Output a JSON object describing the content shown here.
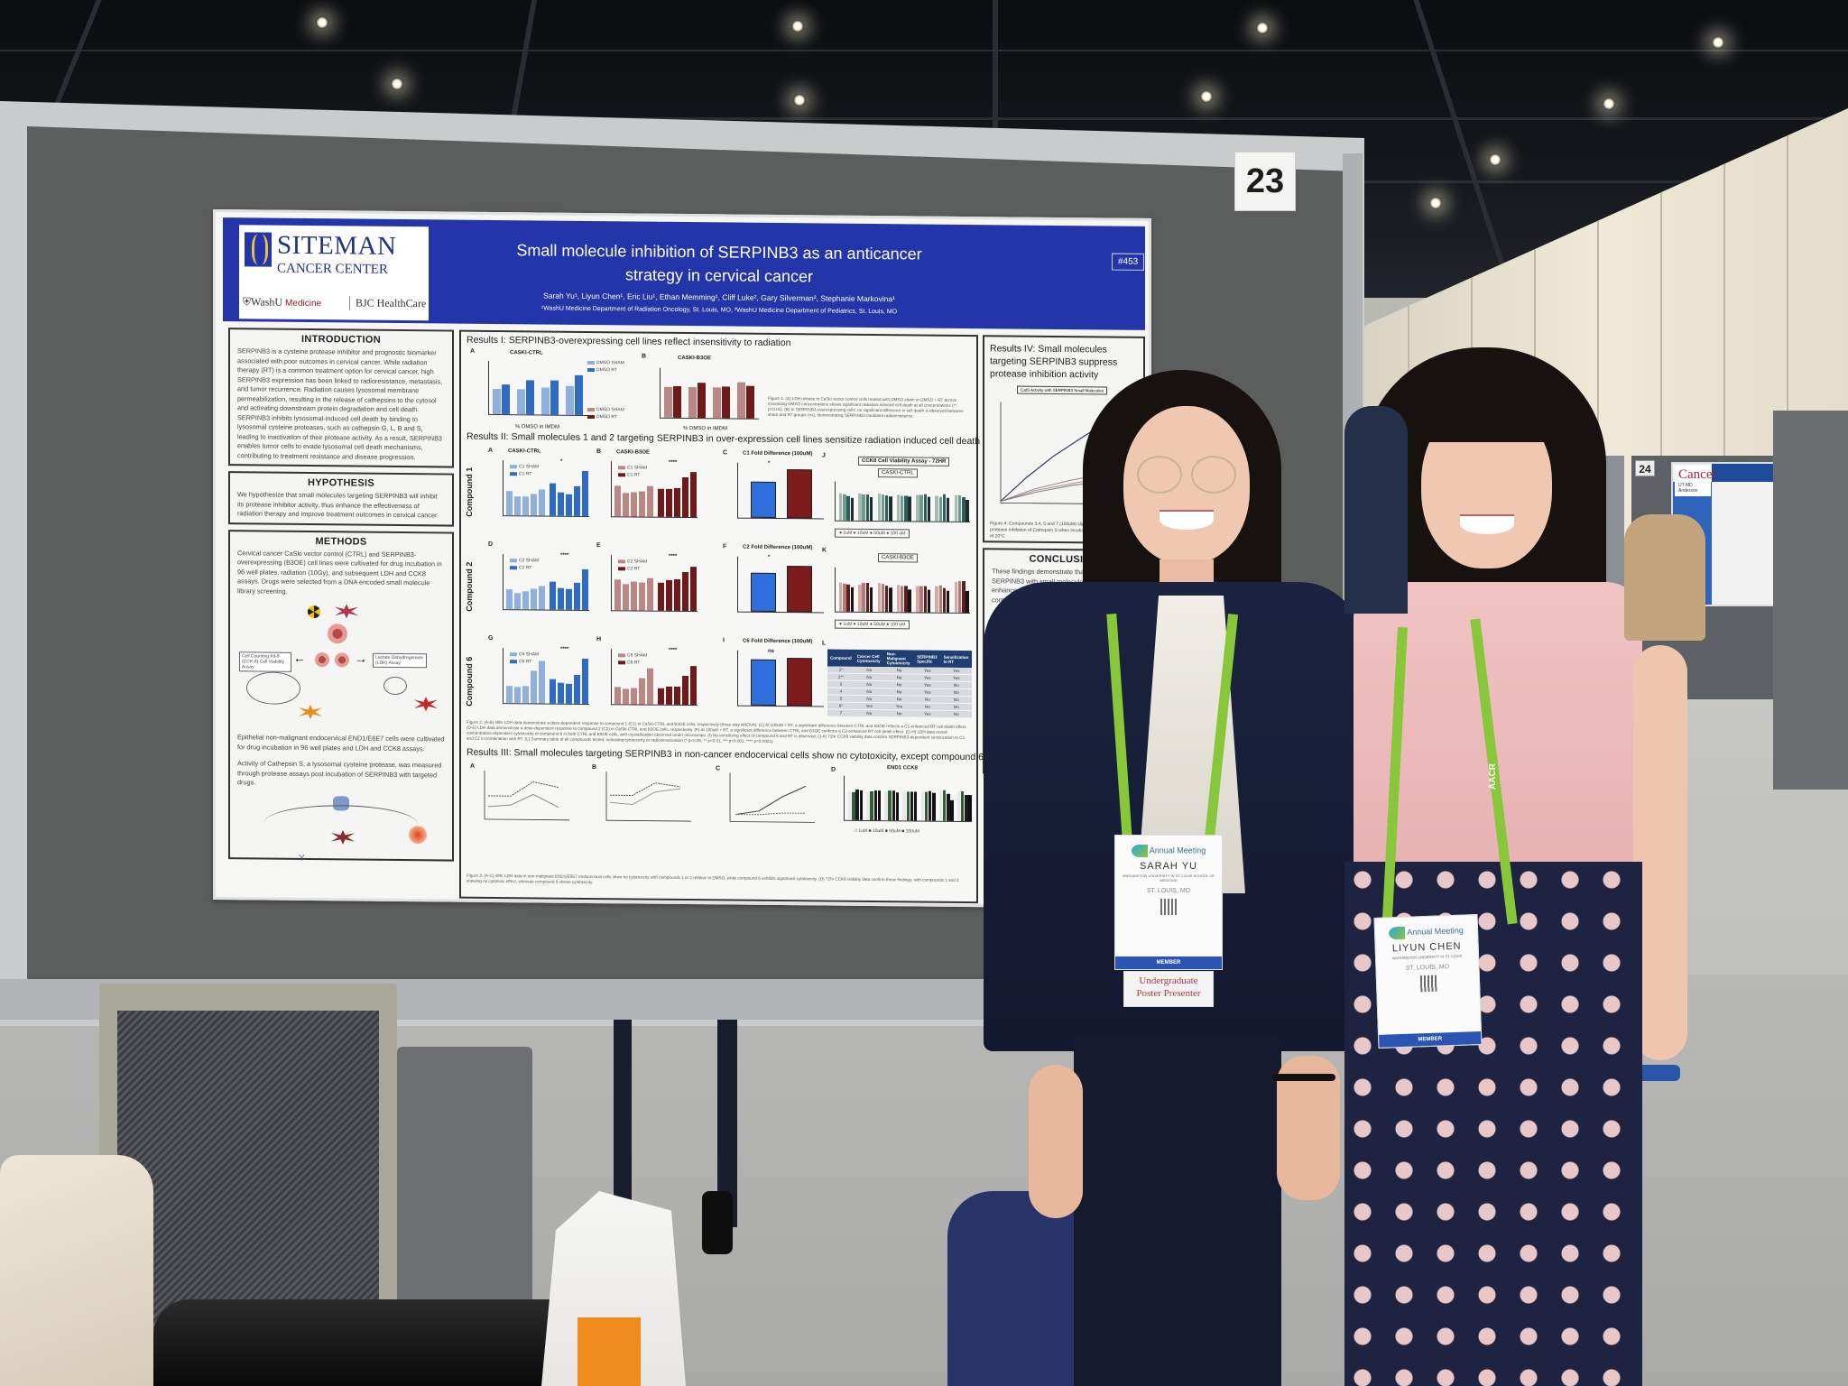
{
  "scene": {
    "description": "Two presenters standing beside a research poster at a convention poster session",
    "board_number": "23",
    "neighbor_board_number": "24"
  },
  "poster": {
    "logo": {
      "line1": "SITEMAN",
      "line2": "CANCER CENTER",
      "partner1_a": "WashU",
      "partner1_b": "Medicine",
      "partner2": "BJC HealthCare"
    },
    "title_line1": "Small molecule inhibition of SERPINB3 as an anticancer",
    "title_line2": "strategy in cervical cancer",
    "abstract_number": "#453",
    "authors": "Sarah Yu¹, Liyun Chen¹, Eric Liu¹, Ethan Memming¹, Cliff Luke², Gary Silverman², Stephanie Markovina¹",
    "affiliations": "¹WashU Medicine Department of Radiation Oncology, St. Louis, MO, ²WashU Medicine Department of Pediatrics, St. Louis, MO",
    "introduction": {
      "heading": "INTRODUCTION",
      "text": "SERPINB3 is a cysteine protease inhibitor and prognostic biomarker associated with poor outcomes in cervical cancer. While radiation therapy (RT) is a common treatment option for cervical cancer, high SERPINB3 expression has been linked to radioresistance, metastasis, and tumor recurrence. Radiation causes lysosomal membrane permeabilization, resulting in the release of cathepsins to the cytosol and activating downstream protein degradation and cell death. SERPINB3 inhibits lysosomal-induced cell death by binding to lysosomal cysteine proteases, such as cathepsin G, L, B and S, leading to inactivation of their protease activity. As a result, SERPINB3 enables tumor cells to evade lysosomal cell death mechanisms, contributing to treatment resistance and disease progression."
    },
    "hypothesis": {
      "heading": "HYPOTHESIS",
      "text": "We hypothesize that small molecules targeting SERPINB3 will inhibit its protease inhibitor activity, thus enhance the effectiveness of radiation therapy and improve treatment outcomes in cervical cancer."
    },
    "methods": {
      "heading": "METHODS",
      "text1": "Cervical cancer CaSki vector control (CTRL) and SERPINB3-overexpressing (B3OE) cell lines were cultivated for drug incubation in 96 well plates, radiation (10Gy), and subsequent LDH and CCK8 assays. Drugs were selected from a DNA encoded small molecule library screening.",
      "fig_labels": {
        "radiation": "10 Gy",
        "serpinb3": "SERPINB3",
        "drugs": "small molecule drugs",
        "damage": "Membrane Damage",
        "cck8": "Cell Counting Kit-8 (CCK-8) Cell Viability Assay",
        "ldh": "Lactate Dehydrogenase (LDH) Assay",
        "lactate": "Lactate",
        "pyruvate": "Pyruvate",
        "signal1": "Signal detection: 450nm",
        "signal2": "Signal detection: 490nm"
      },
      "text2": "Epithelial non-malignant endocervical END1/E6E7 cells were cultivated for drug incubation in 96 well plates and LDH and CCK8 assays.",
      "text3": "Activity of Cathepsin S, a lysosomal cysteine protease, was measured through protease assays post incubation of SERPINB3 with targeted drugs.",
      "fig2_labels": {
        "cathepsin": "Cathepsin S",
        "serpinb3": "SERPINB3",
        "antibody": "antibody",
        "drugs": "small molecule drugs",
        "amc": "AMC",
        "signal": "Signal detection Ex/Em: 360/460nm"
      }
    },
    "results1": {
      "heading_bold": "Results I",
      "heading_rest": ": SERPINB3-overexpressing cell lines reflect insensitivity to radiation",
      "figure_caption": "Figure 1: (A) LDH release in CaSki vector control cells treated with DMSO sham or DMSO + RT across increasing DMSO concentrations shows significant radiation-induced cell death at all concentrations (** p<0.01). (B) In SERPINB3-overexpressing cells, no significant difference in cell death is observed between sham and RT groups (ns), demonstrating SERPINB3-mediated radioresistance."
    },
    "results2": {
      "heading_bold": "Results II",
      "heading_rest": ": Small molecules 1 and 2 targeting SERPINB3 in over-expression cell lines sensitize radiation induced cell death",
      "row_labels": [
        "Compound 1",
        "Compound 2",
        "Compound 6"
      ],
      "ccK8_title": "CCK8 Cell Viability Assay - 72HR",
      "ccK8_panels": [
        "CASKI-CTRL",
        "CASKI-B3OE"
      ],
      "ccK8_legend": [
        "1uM",
        "10uM",
        "50uM",
        "100 uM"
      ],
      "figure_caption": "Figure 2: (A-B) 48hr LDH data demonstrate a dose-dependent response to compound 1 (C1) in CaSki-CTRL and B3OE cells, respectively (three-way ANOVA). (C) At 100uM + RT, a significant difference between CTRL and B3OE reflects a C1-enhanced RT cell death effect. (D-E) LDH data demonstrate a dose-dependent response to compound 2 (C2) in CaSki-CTRL and B3OE cells, respectively. (F) At 100uM + RT, a significant difference between CTRL and B3OE confirms a C2-enhanced RT cell death effect. (G-H) LDH data reveal concentration-dependent cytotoxicity of compound 6 in both CTRL and B3OE cells, with crystallization observed under microscope. (I) No sensitizing effect of compound 6 and RT is observed. (J-K) 72hr CCK8 viability data confirm SERPINB3-dependent sensitization to C1 and C2 in combination with RT. (L) Summary table of all compounds tested, indicating cytotoxicity or radiosensitization (* p<0.05, ** p<0.01, *** p<0.001, **** p<0.0001)."
    },
    "summary_table": {
      "panel": "L",
      "headers": [
        "Compound",
        "Cancer Cell Cytotoxicity",
        "Non-Malignant Cytotoxicity",
        "SERPINB3 Specific",
        "Sensitization to RT"
      ],
      "rows": [
        [
          "1*",
          "No",
          "No",
          "Yes",
          "Yes"
        ],
        [
          "2**",
          "No",
          "No",
          "Yes",
          "Yes"
        ],
        [
          "3",
          "No",
          "No",
          "Yes",
          "No"
        ],
        [
          "4",
          "No",
          "No",
          "Yes",
          "No"
        ],
        [
          "5",
          "No",
          "No",
          "No",
          "No"
        ],
        [
          "6*",
          "Yes",
          "Yes",
          "No",
          "No"
        ],
        [
          "7",
          "No",
          "No",
          "Yes",
          "No"
        ]
      ]
    },
    "results3": {
      "heading_bold": "Results III",
      "heading_rest": ": Small molecules targeting SERPINB3 in non-cancer endocervical cells show no cytotoxicity, except compound 6",
      "ccK8_title": "END1 CCK8",
      "ccK8_legend": [
        "1uM",
        "10uM",
        "50uM",
        "100uM"
      ],
      "figure_caption": "Figure 3: (A-C) 48hr LDH data in non-malignant END1/E6E7 endocervical cells show no cytotoxicity with compounds 1 or 2 relative to DMSO, while compound 6 exhibits significant cytotoxicity. (D) 72hr CCK8 viability data confirm these findings, with compounds 1 and 2 showing no cytotoxic effect, whereas compound 6 shows cytotoxicity."
    },
    "results4": {
      "heading_bold": "Results IV",
      "heading_rest": ": Small molecules targeting SERPINB3 suppress protease inhibition activity",
      "chart_title": "CatS Activity with SERPINB3 Small Molecules",
      "figure_caption": "Figure 4: Compounds 3,4, 5 and 7 (100uM) slightly suppress SERPINB3 protease inhibition of Cathepsin S when incubated with SERPINB3 for ... at 20°C"
    },
    "conclusion": {
      "heading": "CONCLUSION",
      "text": "These findings demonstrate that targeting SERPINB3 with small molecule (C1, C2) enhances RT-induced cell death through the d... contro... li..."
    }
  },
  "chart_data": [
    {
      "panel": "Results I A",
      "type": "bar",
      "title": "CASKI-CTRL",
      "xlabel": "% DMSO in IMDM",
      "ylabel": "relative OD",
      "categories": [
        "0.002%",
        "0.02%",
        "0.1%",
        "0.2%"
      ],
      "series": [
        {
          "name": "DMSO SHAM",
          "color": "#8fb0de",
          "values": [
            0.93,
            0.92,
            0.99,
            1.07
          ]
        },
        {
          "name": "DMSO RT",
          "color": "#2f6bc0",
          "values": [
            1.1,
            1.26,
            1.27,
            1.45
          ]
        }
      ],
      "significance": [
        "**",
        "**",
        "**",
        "**"
      ],
      "ylim": [
        0,
        2.0
      ],
      "yticks": [
        0.0,
        0.5,
        1.0,
        1.5,
        2.0
      ]
    },
    {
      "panel": "Results I B",
      "type": "bar",
      "title": "CASKI-B3OE",
      "xlabel": "% DMSO in IMDM",
      "ylabel": "relative OD",
      "categories": [
        "0.002%",
        "0.02%",
        "0.1%",
        "0.2%"
      ],
      "series": [
        {
          "name": "DMSO SHAM",
          "color": "#b98884",
          "values": [
            0.92,
            0.91,
            0.92,
            1.06
          ]
        },
        {
          "name": "DMSO RT",
          "color": "#6e1a1a",
          "values": [
            0.94,
            1.05,
            0.95,
            0.97
          ]
        }
      ],
      "significance": [
        "ns",
        "ns",
        "ns",
        "ns"
      ],
      "ylim": [
        0,
        1.5
      ],
      "yticks": [
        0.0,
        0.5,
        1.0,
        1.5
      ]
    },
    {
      "panel": "Results II A",
      "type": "bar",
      "title": "CASKI-CTRL",
      "xlabel": "conc.",
      "ylabel": "relative OD",
      "categories": [
        "DMSO",
        "1uM",
        "10uM",
        "50uM",
        "100uM"
      ],
      "series": [
        {
          "name": "C1 SHAM",
          "color": "#8fb0de",
          "values": [
            1.1,
            0.84,
            0.85,
            0.95,
            1.18
          ]
        },
        {
          "name": "C1 RT",
          "color": "#2f6bc0",
          "values": [
            1.47,
            1.05,
            0.98,
            1.32,
            2.0
          ]
        }
      ],
      "annotations": [
        "*"
      ],
      "ylim": [
        0,
        2.5
      ]
    },
    {
      "panel": "Results II B",
      "type": "bar",
      "title": "CASKI-B3OE",
      "xlabel": "conc.",
      "ylabel": "relative OD",
      "categories": [
        "DMSO",
        "1uM",
        "10uM",
        "50uM",
        "100uM"
      ],
      "series": [
        {
          "name": "C1 SHAM",
          "color": "#b98884",
          "values": [
            1.1,
            0.84,
            0.87,
            0.91,
            1.1
          ]
        },
        {
          "name": "C1 RT",
          "color": "#6e1a1a",
          "values": [
            1.0,
            1.0,
            1.04,
            1.42,
            1.62
          ]
        }
      ],
      "annotations": [
        "**",
        "****"
      ],
      "ylim": [
        0,
        2.0
      ]
    },
    {
      "panel": "Results II C",
      "type": "bar",
      "title": "C1 Fold Difference (100uM)",
      "ylabel": "100uM OD/DMSO",
      "categories": [
        "CASKI-CTRL",
        "CASKI-B3OE"
      ],
      "values": [
        1.29,
        1.75
      ],
      "colors": [
        "#2f6fdc",
        "#7c1c1c"
      ],
      "annotations": [
        "*"
      ],
      "ylim": [
        0,
        2.0
      ]
    },
    {
      "panel": "Results II D",
      "type": "bar",
      "xlabel": "conc.",
      "ylabel": "relative OD",
      "categories": [
        "DMSO",
        "1uM",
        "10uM",
        "50uM",
        "100uM"
      ],
      "series": [
        {
          "name": "C2 SHAM",
          "color": "#8fb0de",
          "values": [
            1.08,
            0.89,
            0.96,
            1.12,
            1.28
          ]
        },
        {
          "name": "C2 RT",
          "color": "#2f6bc0",
          "values": [
            1.48,
            1.17,
            1.12,
            1.46,
            2.2
          ]
        }
      ],
      "annotations": [
        "****"
      ],
      "ylim": [
        0,
        3
      ]
    },
    {
      "panel": "Results II E",
      "type": "bar",
      "xlabel": "conc.",
      "ylabel": "relative OD",
      "categories": [
        "DMSO",
        "1uM",
        "10uM",
        "50uM",
        "100uM"
      ],
      "series": [
        {
          "name": "C2 SHAM",
          "color": "#b98884",
          "values": [
            1.1,
            0.93,
            1.03,
            1.01,
            1.15
          ]
        },
        {
          "name": "C2 RT",
          "color": "#6e1a1a",
          "values": [
            1.0,
            1.09,
            1.13,
            1.38,
            1.58
          ]
        }
      ],
      "annotations": [
        "*",
        "****"
      ],
      "ylim": [
        0,
        2.0
      ]
    },
    {
      "panel": "Results II F",
      "type": "bar",
      "title": "C2 Fold Difference (100uM)",
      "ylabel": "100uM OD/DMSO",
      "categories": [
        "CASKI-CTRL",
        "CASKI-B3OE"
      ],
      "values": [
        1.4,
        1.63
      ],
      "colors": [
        "#2f6fdc",
        "#7c1c1c"
      ],
      "annotations": [
        "*"
      ],
      "ylim": [
        0,
        2.0
      ]
    },
    {
      "panel": "Results II G",
      "type": "bar",
      "xlabel": "conc.",
      "ylabel": "relative OD",
      "categories": [
        "DMSO",
        "1uM",
        "10uM",
        "50uM",
        "100uM"
      ],
      "series": [
        {
          "name": "C6 SHAM",
          "color": "#8fb0de",
          "values": [
            1.1,
            1.02,
            1.1,
            2.02,
            2.68
          ]
        },
        {
          "name": "C6 RT",
          "color": "#2f6bc0",
          "values": [
            1.5,
            1.29,
            1.22,
            1.78,
            2.8
          ]
        }
      ],
      "annotations": [
        "****",
        "****",
        "****"
      ],
      "ylim": [
        0,
        3.5
      ]
    },
    {
      "panel": "Results II H",
      "type": "bar",
      "xlabel": "conc.",
      "ylabel": "relative OD",
      "categories": [
        "DMSO",
        "1uM",
        "10uM",
        "50uM",
        "100uM"
      ],
      "series": [
        {
          "name": "C6 SHAM",
          "color": "#b98884",
          "values": [
            1.1,
            0.97,
            1.01,
            1.64,
            2.26
          ]
        },
        {
          "name": "C6 RT",
          "color": "#6e1a1a",
          "values": [
            1.03,
            1.11,
            1.12,
            1.8,
            2.45
          ]
        }
      ],
      "annotations": [
        "****",
        "****",
        "****",
        "****"
      ],
      "ylim": [
        0,
        3.5
      ]
    },
    {
      "panel": "Results II I",
      "type": "bar",
      "title": "C6 Fold Difference (100uM)",
      "ylabel": "100uM OD/DMSO",
      "categories": [
        "CASKI-CTRL",
        "CASKI-B3OE"
      ],
      "values": [
        2.45,
        2.55
      ],
      "colors": [
        "#2f6fdc",
        "#7c1c1c"
      ],
      "annotations": [
        "ns"
      ],
      "ylim": [
        0,
        3
      ]
    },
    {
      "panel": "Results III D",
      "type": "bar",
      "title": "END1 CCK8",
      "ylabel": "viability",
      "categories": [
        "C1",
        "C2",
        "C3",
        "C4",
        "C5",
        "C6",
        "C7"
      ],
      "series": [
        {
          "name": "1uM",
          "color": "#e8e8e8",
          "values": [
            1.03,
            1.0,
            1.03,
            1.03,
            1.03,
            1.08,
            1.06
          ]
        },
        {
          "name": "10uM",
          "color": "#2f5d35",
          "values": [
            1.02,
            1.05,
            1.07,
            1.03,
            1.05,
            1.1,
            1.08
          ]
        },
        {
          "name": "50uM",
          "color": "#1a1a1a",
          "values": [
            1.1,
            1.08,
            1.06,
            1.04,
            1.06,
            0.98,
            0.95
          ]
        },
        {
          "name": "100uM",
          "color": "#111111",
          "values": [
            1.08,
            1.08,
            1.02,
            1.03,
            1.02,
            0.76,
            0.95
          ]
        }
      ],
      "ylim": [
        0,
        1.5
      ]
    }
  ],
  "presenter1": {
    "badge_event": "Annual Meeting",
    "badge_org": "AACR",
    "name": "SARAH YU",
    "institution": "WASHINGTON UNIVERSITY IN ST. LOUIS SCHOOL OF MEDICINE",
    "city": "ST. LOUIS, MO",
    "badge_type": "MEMBER",
    "ribbon_line1": "Undergraduate",
    "ribbon_line2": "Poster Presenter"
  },
  "presenter2": {
    "badge_event": "Annual Meeting",
    "badge_org": "AACR",
    "name": "LIYUN CHEN",
    "institution": "WASHINGTON UNIVERSITY IN ST. LOUIS",
    "city": "ST. LOUIS, MO",
    "badge_type": "MEMBER",
    "lanyard_text": "AACR"
  },
  "background_poster": {
    "logo": "Cancer",
    "logo_sub": "UT MD Anderson"
  },
  "colors": {
    "poster_header": "#2335a8",
    "board_grey": "#5b5e5d",
    "lanyard_green": "#88c63a",
    "ctrl_blue": "#2f6bc0",
    "b3oe_red": "#6e1a1a"
  }
}
